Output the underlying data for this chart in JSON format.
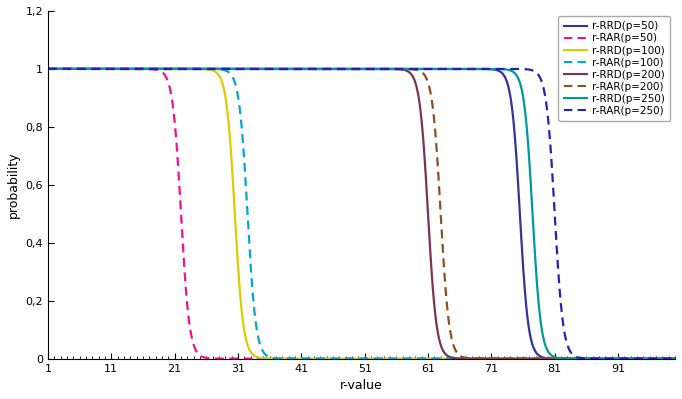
{
  "title": "",
  "xlabel": "r-value",
  "ylabel": "probability",
  "xlim": [
    1,
    100
  ],
  "ylim": [
    0,
    1.2
  ],
  "xticks": [
    1,
    11,
    21,
    31,
    41,
    51,
    61,
    71,
    81,
    91
  ],
  "yticks": [
    0.0,
    0.2,
    0.4,
    0.6,
    0.8,
    1.0,
    1.2
  ],
  "ytick_labels": [
    "0",
    "0,2",
    "0,4",
    "0,6",
    "0,8",
    "1",
    "1,2"
  ],
  "series": [
    {
      "label": "r-RRD(p=50)",
      "color": "#333399",
      "linestyle": "solid",
      "midpoint": 75.5,
      "steepness": 1.5
    },
    {
      "label": "r-RAR(p=50)",
      "color": "#ee1199",
      "linestyle": "dashed",
      "midpoint": 22.0,
      "steepness": 1.5
    },
    {
      "label": "r-RRD(p=100)",
      "color": "#ddcc00",
      "linestyle": "solid",
      "midpoint": 30.5,
      "steepness": 1.5
    },
    {
      "label": "r-RAR(p=100)",
      "color": "#00aacc",
      "linestyle": "dashed",
      "midpoint": 32.5,
      "steepness": 1.5
    },
    {
      "label": "r-RRD(p=200)",
      "color": "#7a3555",
      "linestyle": "solid",
      "midpoint": 61.0,
      "steepness": 1.5
    },
    {
      "label": "r-RAR(p=200)",
      "color": "#8B5020",
      "linestyle": "dashed",
      "midpoint": 63.0,
      "steepness": 1.5
    },
    {
      "label": "r-RRD(p=250)",
      "color": "#009999",
      "linestyle": "solid",
      "midpoint": 77.5,
      "steepness": 1.5
    },
    {
      "label": "r-RAR(p=250)",
      "color": "#2222bb",
      "linestyle": "dashed",
      "midpoint": 81.0,
      "steepness": 1.5
    }
  ],
  "background_color": "#ffffff",
  "legend_fontsize": 7.5,
  "axis_fontsize": 9,
  "tick_fontsize": 8
}
